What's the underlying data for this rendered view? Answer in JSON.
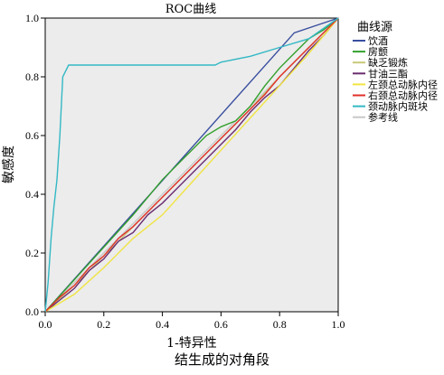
{
  "chart_data": {
    "type": "line",
    "title": "ROC曲线",
    "xlabel": "1-特异性",
    "ylabel": "敏感度",
    "xlim": [
      0,
      1
    ],
    "ylim": [
      0,
      1
    ],
    "xticks": [
      "0.0",
      "0.2",
      "0.4",
      "0.6",
      "0.8",
      "1.0"
    ],
    "yticks": [
      "0.0",
      "0.2",
      "0.4",
      "0.6",
      "0.8",
      "1.0"
    ],
    "grid": false,
    "background": "#ececec",
    "legend": {
      "title": "曲线源",
      "placement": "right"
    },
    "series": [
      {
        "name": "饮酒",
        "color": "#3a4fa0",
        "x": [
          0,
          0.85,
          1.0
        ],
        "y": [
          0,
          0.95,
          1.0
        ]
      },
      {
        "name": "房颤",
        "color": "#33a02c",
        "x": [
          0,
          0.1,
          0.2,
          0.3,
          0.4,
          0.5,
          0.55,
          0.6,
          0.65,
          0.7,
          0.75,
          0.8,
          0.85,
          0.9,
          0.95,
          1.0
        ],
        "y": [
          0,
          0.11,
          0.22,
          0.33,
          0.45,
          0.55,
          0.6,
          0.63,
          0.65,
          0.7,
          0.77,
          0.83,
          0.88,
          0.93,
          0.96,
          1.0
        ]
      },
      {
        "name": "缺乏锻炼",
        "color": "#c8c87a",
        "x": [
          0,
          0.1,
          0.2,
          0.3,
          0.4,
          0.5,
          0.6,
          0.7,
          0.8,
          0.9,
          1.0
        ],
        "y": [
          0,
          0.09,
          0.19,
          0.29,
          0.39,
          0.49,
          0.59,
          0.69,
          0.8,
          0.9,
          1.0
        ]
      },
      {
        "name": "甘油三酯",
        "color": "#6a2c70",
        "x": [
          0,
          0.05,
          0.1,
          0.15,
          0.2,
          0.25,
          0.3,
          0.35,
          0.4,
          0.45,
          0.5,
          0.55,
          0.6,
          0.65,
          0.7,
          0.75,
          0.8,
          0.85,
          0.9,
          0.95,
          1.0
        ],
        "y": [
          0,
          0.04,
          0.08,
          0.14,
          0.18,
          0.24,
          0.27,
          0.33,
          0.37,
          0.42,
          0.47,
          0.52,
          0.57,
          0.62,
          0.68,
          0.73,
          0.77,
          0.83,
          0.89,
          0.94,
          1.0
        ]
      },
      {
        "name": "左颈总动脉内径",
        "color": "#f0e442",
        "x": [
          0,
          0.1,
          0.2,
          0.3,
          0.4,
          0.5,
          0.6,
          0.7,
          0.8,
          0.9,
          1.0
        ],
        "y": [
          0,
          0.06,
          0.15,
          0.25,
          0.33,
          0.44,
          0.55,
          0.66,
          0.77,
          0.88,
          1.0
        ]
      },
      {
        "name": "右颈总动脉内径",
        "color": "#e0312a",
        "x": [
          0,
          0.05,
          0.1,
          0.15,
          0.2,
          0.25,
          0.3,
          0.35,
          0.4,
          0.45,
          0.5,
          0.55,
          0.6,
          0.65,
          0.7,
          0.75,
          0.8,
          0.85,
          0.9,
          0.95,
          1.0
        ],
        "y": [
          0,
          0.05,
          0.09,
          0.15,
          0.19,
          0.25,
          0.29,
          0.34,
          0.39,
          0.44,
          0.49,
          0.54,
          0.59,
          0.64,
          0.69,
          0.74,
          0.8,
          0.85,
          0.9,
          0.95,
          1.0
        ]
      },
      {
        "name": "颈动脉内斑块",
        "color": "#33b8c4",
        "x": [
          0,
          0.01,
          0.02,
          0.03,
          0.04,
          0.05,
          0.06,
          0.08,
          0.2,
          0.4,
          0.58,
          0.6,
          0.7,
          0.8,
          0.9,
          1.0
        ],
        "y": [
          0,
          0.1,
          0.25,
          0.36,
          0.45,
          0.6,
          0.8,
          0.84,
          0.84,
          0.84,
          0.84,
          0.85,
          0.87,
          0.9,
          0.93,
          1.0
        ]
      },
      {
        "name": "参考线",
        "color": "#c8c8c8",
        "x": [
          0,
          1
        ],
        "y": [
          0,
          1
        ]
      }
    ]
  },
  "footnote": "结生成的对角段"
}
